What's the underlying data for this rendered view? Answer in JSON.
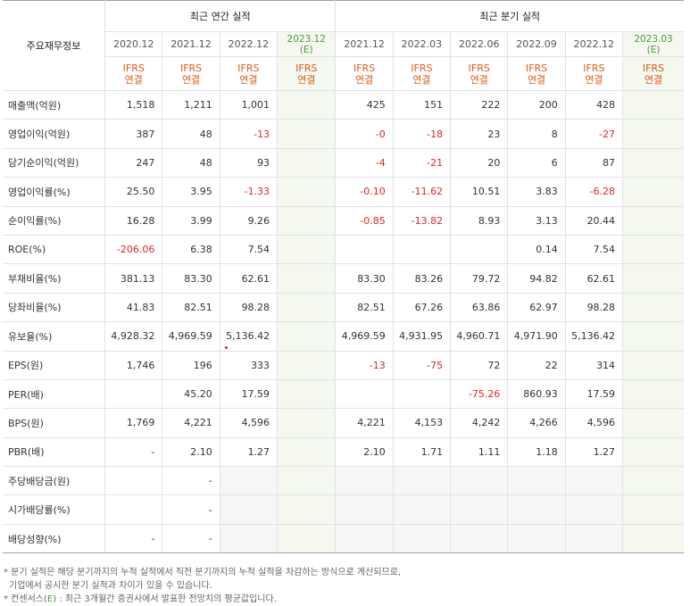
{
  "header": {
    "corner": "주요재무정보",
    "annual_title": "최근 연간 실적",
    "quarter_title": "최근 분기 실적",
    "annual_periods": [
      "2020.12",
      "2021.12",
      "2022.12",
      "2023.12"
    ],
    "quarter_periods": [
      "2021.12",
      "2022.03",
      "2022.06",
      "2022.09",
      "2022.12",
      "2023.03"
    ],
    "estimate_mark": "(E)",
    "basis_top": "IFRS",
    "basis_bottom": "연결"
  },
  "rows": [
    {
      "label": "매출액(억원)",
      "annual": [
        "1,518",
        "1,211",
        "1,001",
        ""
      ],
      "quarter": [
        "425",
        "151",
        "222",
        "200",
        "428",
        ""
      ]
    },
    {
      "label": "영업이익(억원)",
      "annual": [
        "387",
        "48",
        "-13",
        ""
      ],
      "quarter": [
        "-0",
        "-18",
        "23",
        "8",
        "-27",
        ""
      ]
    },
    {
      "label": "당기순이익(억원)",
      "annual": [
        "247",
        "48",
        "93",
        ""
      ],
      "quarter": [
        "-4",
        "-21",
        "20",
        "6",
        "87",
        ""
      ]
    },
    {
      "label": "영업이익률(%)",
      "annual": [
        "25.50",
        "3.95",
        "-1.33",
        ""
      ],
      "quarter": [
        "-0.10",
        "-11.62",
        "10.51",
        "3.83",
        "-6.28",
        ""
      ]
    },
    {
      "label": "순이익률(%)",
      "annual": [
        "16.28",
        "3.99",
        "9.26",
        ""
      ],
      "quarter": [
        "-0.85",
        "-13.82",
        "8.93",
        "3.13",
        "20.44",
        ""
      ]
    },
    {
      "label": "ROE(%)",
      "annual": [
        "-206.06",
        "6.38",
        "7.54",
        ""
      ],
      "quarter": [
        "",
        "",
        "",
        "0.14",
        "7.54",
        ""
      ]
    },
    {
      "label": "부채비율(%)",
      "annual": [
        "381.13",
        "83.30",
        "62.61",
        ""
      ],
      "quarter": [
        "83.30",
        "83.26",
        "79.72",
        "94.82",
        "62.61",
        ""
      ]
    },
    {
      "label": "당좌비율(%)",
      "annual": [
        "41.83",
        "82.51",
        "98.28",
        ""
      ],
      "quarter": [
        "82.51",
        "67.26",
        "63.86",
        "62.97",
        "98.28",
        ""
      ]
    },
    {
      "label": "유보율(%)",
      "annual": [
        "4,928.32",
        "4,969.59",
        "5,136.42",
        ""
      ],
      "quarter": [
        "4,969.59",
        "4,931.95",
        "4,960.71",
        "4,971.90",
        "5,136.42",
        ""
      ]
    },
    {
      "label": "EPS(원)",
      "annual": [
        "1,746",
        "196",
        "333",
        ""
      ],
      "quarter": [
        "-13",
        "-75",
        "72",
        "22",
        "314",
        ""
      ]
    },
    {
      "label": "PER(배)",
      "annual": [
        "",
        "45.20",
        "17.59",
        ""
      ],
      "quarter": [
        "",
        "",
        "-75.26",
        "860.93",
        "17.59",
        ""
      ]
    },
    {
      "label": "BPS(원)",
      "annual": [
        "1,769",
        "4,221",
        "4,596",
        ""
      ],
      "quarter": [
        "4,221",
        "4,153",
        "4,242",
        "4,266",
        "4,596",
        ""
      ]
    },
    {
      "label": "PBR(배)",
      "annual": [
        "-",
        "2.10",
        "1.27",
        ""
      ],
      "quarter": [
        "2.10",
        "1.71",
        "1.11",
        "1.18",
        "1.27",
        ""
      ]
    },
    {
      "label": "주당배당금(원)",
      "annual": [
        "",
        "-",
        "",
        ""
      ],
      "quarter": [
        "",
        "",
        "",
        "",
        "",
        ""
      ],
      "gray": true
    },
    {
      "label": "시가배당률(%)",
      "annual": [
        "",
        "-",
        "",
        ""
      ],
      "quarter": [
        "",
        "",
        "",
        "",
        "",
        ""
      ],
      "gray": true
    },
    {
      "label": "배당성향(%)",
      "annual": [
        "-",
        "-",
        "",
        ""
      ],
      "quarter": [
        "",
        "",
        "",
        "",
        "",
        ""
      ],
      "gray": true
    }
  ],
  "notes": {
    "line1": "* 분기 실적은 해당 분기까지의 누적 실적에서 직전 분기까지의 누적 실적을 차감하는 방식으로 계산되므로,",
    "line2": "기업에서 공시한 분기 실적과 차이가 있을 수 있습니다.",
    "line3_prefix": "* 컨센서스(",
    "line3_e": "E",
    "line3_suffix": ") : 최근 3개월간 증권사에서 발표한 전망치의 평균값입니다."
  },
  "colors": {
    "negative": "#e0242a",
    "basis": "#e05a1a",
    "estimate": "#4a9e3e"
  }
}
